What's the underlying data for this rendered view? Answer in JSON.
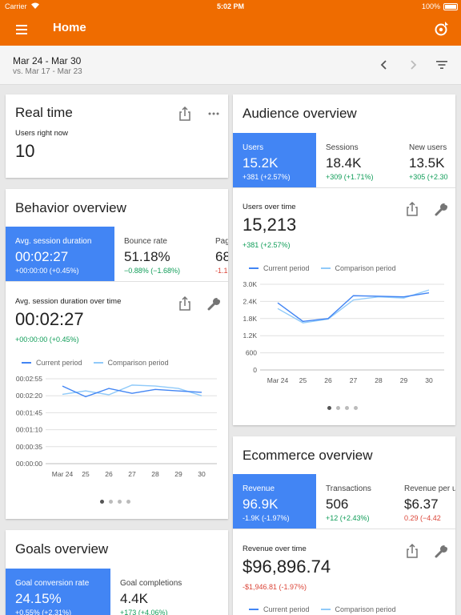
{
  "status_bar": {
    "carrier": "Carrier",
    "time": "5:02 PM",
    "battery": "100%"
  },
  "app_bar": {
    "title": "Home"
  },
  "date_range": {
    "current": "Mar 24 - Mar 30",
    "comparison": "vs. Mar 17 - Mar 23"
  },
  "colors": {
    "accent": "#ef6c00",
    "selected_metric": "#4285f4",
    "positive": "#0f9d58",
    "negative": "#db4437",
    "current_line": "#4285f4",
    "comparison_line": "#90caf9"
  },
  "real_time": {
    "title": "Real time",
    "label": "Users right now",
    "value": "10"
  },
  "behavior": {
    "title": "Behavior overview",
    "metrics": [
      {
        "label": "Avg. session duration",
        "value": "00:02:27",
        "delta": "+00:00:00 (+0.45%)"
      },
      {
        "label": "Bounce rate",
        "value": "51.18%",
        "delta": "−0.88% (−1.68%)"
      },
      {
        "label": "Pag",
        "value": "68",
        "delta": "-1.1"
      }
    ],
    "chart_label": "Avg. session duration over time",
    "chart_value": "00:02:27",
    "chart_delta": "+00:00:00 (+0.45%)"
  },
  "audience": {
    "title": "Audience overview",
    "metrics": [
      {
        "label": "Users",
        "value": "15.2K",
        "delta": "+381 (+2.57%)"
      },
      {
        "label": "Sessions",
        "value": "18.4K",
        "delta": "+309 (+1.71%)"
      },
      {
        "label": "New users",
        "value": "13.5K",
        "delta": "+305 (+2.30"
      }
    ],
    "chart_label": "Users over time",
    "chart_value": "15,213",
    "chart_delta": "+381 (+2.57%)"
  },
  "ecommerce": {
    "title": "Ecommerce overview",
    "metrics": [
      {
        "label": "Revenue",
        "value": "96.9K",
        "delta": "-1.9K (-1.97%)"
      },
      {
        "label": "Transactions",
        "value": "506",
        "delta": "+12 (+2.43%)"
      },
      {
        "label": "Revenue per u",
        "value": "$6.37",
        "delta": "0.29 (−4.42"
      }
    ],
    "chart_label": "Revenue over time",
    "chart_value": "$96,896.74",
    "chart_delta": "-$1,946.81 (-1.97%)"
  },
  "goals": {
    "title": "Goals overview",
    "metrics": [
      {
        "label": "Goal conversion rate",
        "value": "24.15%",
        "delta": "+0.55% (+2.31%)"
      },
      {
        "label": "Goal completions",
        "value": "4.4K",
        "delta": "+173 (+4.06%)"
      }
    ]
  },
  "legend": {
    "current": "Current period",
    "comparison": "Comparison period"
  },
  "chart_data": [
    {
      "type": "line",
      "title": "Avg. session duration over time",
      "categories": [
        "Mar 24",
        "25",
        "26",
        "27",
        "28",
        "29",
        "30"
      ],
      "y_ticks": [
        "00:00:00",
        "00:00:35",
        "00:01:10",
        "00:01:45",
        "00:02:20",
        "00:02:55"
      ],
      "ylim": [
        0,
        175
      ],
      "series": [
        {
          "name": "Current period",
          "values": [
            160,
            138,
            155,
            145,
            153,
            150,
            147
          ]
        },
        {
          "name": "Comparison period",
          "values": [
            143,
            150,
            142,
            162,
            160,
            155,
            140
          ]
        }
      ]
    },
    {
      "type": "line",
      "title": "Users over time",
      "categories": [
        "Mar 24",
        "25",
        "26",
        "27",
        "28",
        "29",
        "30"
      ],
      "y_ticks": [
        "0",
        "600",
        "1.2K",
        "1.8K",
        "2.4K",
        "3.0K"
      ],
      "ylim": [
        0,
        3000
      ],
      "series": [
        {
          "name": "Current period",
          "values": [
            2350,
            1700,
            1800,
            2600,
            2580,
            2560,
            2700
          ]
        },
        {
          "name": "Comparison period",
          "values": [
            2150,
            1650,
            1780,
            2450,
            2560,
            2520,
            2800
          ]
        }
      ]
    }
  ]
}
